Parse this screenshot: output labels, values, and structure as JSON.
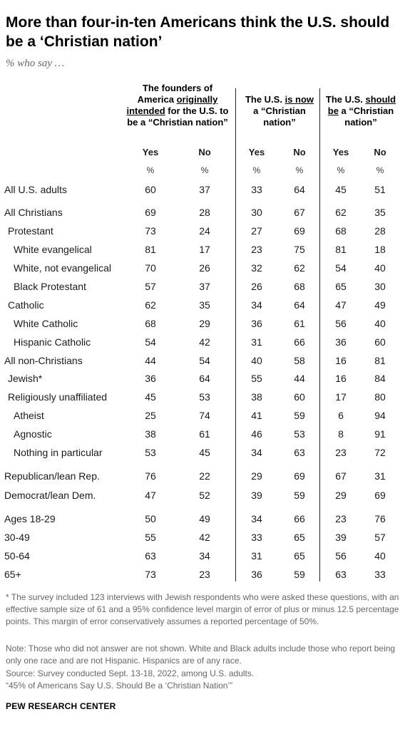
{
  "title": "More than four-in-ten Americans think the U.S. should be a ‘Christian nation’",
  "subtitle": "% who say …",
  "headers": {
    "g1": {
      "pre": "The founders of America ",
      "u1": "originally",
      "sp": " ",
      "u2": "intended",
      "post": " for the U.S. to be a “Christian nation”"
    },
    "g2": {
      "pre": "The U.S. ",
      "u": "is now",
      "post": " a “Christian nation”"
    },
    "g3": {
      "pre": "The U.S. ",
      "u": "should be",
      "post": " a “Christian nation”"
    }
  },
  "yes_label": "Yes",
  "no_label": "No",
  "pct_label": "%",
  "chart_data": {
    "type": "table",
    "title": "More than four-in-ten Americans think the U.S. should be a ‘Christian nation’",
    "columns": [
      "Founders intended: Yes",
      "Founders intended: No",
      "Is now: Yes",
      "Is now: No",
      "Should be: Yes",
      "Should be: No"
    ],
    "rows": [
      {
        "label": "All U.S. adults",
        "values": [
          60,
          37,
          33,
          64,
          45,
          51
        ]
      },
      {
        "label": "All Christians",
        "values": [
          69,
          28,
          30,
          67,
          62,
          35
        ]
      },
      {
        "label": "Protestant",
        "values": [
          73,
          24,
          27,
          69,
          68,
          28
        ]
      },
      {
        "label": "White evangelical",
        "values": [
          81,
          17,
          23,
          75,
          81,
          18
        ]
      },
      {
        "label": "White, not evangelical",
        "values": [
          70,
          26,
          32,
          62,
          54,
          40
        ]
      },
      {
        "label": "Black Protestant",
        "values": [
          57,
          37,
          26,
          68,
          65,
          30
        ]
      },
      {
        "label": "Catholic",
        "values": [
          62,
          35,
          34,
          64,
          47,
          49
        ]
      },
      {
        "label": "White Catholic",
        "values": [
          68,
          29,
          36,
          61,
          56,
          40
        ]
      },
      {
        "label": "Hispanic Catholic",
        "values": [
          54,
          42,
          31,
          66,
          36,
          60
        ]
      },
      {
        "label": "All non-Christians",
        "values": [
          44,
          54,
          40,
          58,
          16,
          81
        ]
      },
      {
        "label": "Jewish*",
        "values": [
          36,
          64,
          55,
          44,
          16,
          84
        ]
      },
      {
        "label": "Religiously unaffiliated",
        "values": [
          45,
          53,
          38,
          60,
          17,
          80
        ]
      },
      {
        "label": "Atheist",
        "values": [
          25,
          74,
          41,
          59,
          6,
          94
        ]
      },
      {
        "label": "Agnostic",
        "values": [
          38,
          61,
          46,
          53,
          8,
          91
        ]
      },
      {
        "label": "Nothing in particular",
        "values": [
          53,
          45,
          34,
          63,
          23,
          72
        ]
      },
      {
        "label": "Republican/lean Rep.",
        "values": [
          76,
          22,
          29,
          69,
          67,
          31
        ]
      },
      {
        "label": "Democrat/lean Dem.",
        "values": [
          47,
          52,
          39,
          59,
          29,
          69
        ]
      },
      {
        "label": "Ages 18-29",
        "values": [
          50,
          49,
          34,
          66,
          23,
          76
        ]
      },
      {
        "label": "30-49",
        "values": [
          55,
          42,
          33,
          65,
          39,
          57
        ]
      },
      {
        "label": "50-64",
        "values": [
          63,
          34,
          31,
          65,
          56,
          40
        ]
      },
      {
        "label": "65+",
        "values": [
          73,
          23,
          36,
          59,
          63,
          33
        ]
      }
    ]
  },
  "footnotes": {
    "asterisk": "* The survey included 123 interviews with Jewish respondents who were asked these questions, with an effective sample size of 61 and a 95% confidence level margin of error of plus or minus 12.5 percentage points. This margin of error conservatively assumes a reported percentage of 50%.",
    "note": "Note: Those who did not answer are not shown. White and Black adults include those who report being only one race and are not Hispanic. Hispanics are of any race.",
    "source": "Source: Survey conducted Sept. 13-18, 2022, among U.S. adults.",
    "report": "“45% of Americans Say U.S. Should Be a ‘Christian Nation’”"
  },
  "brand": "PEW RESEARCH CENTER"
}
